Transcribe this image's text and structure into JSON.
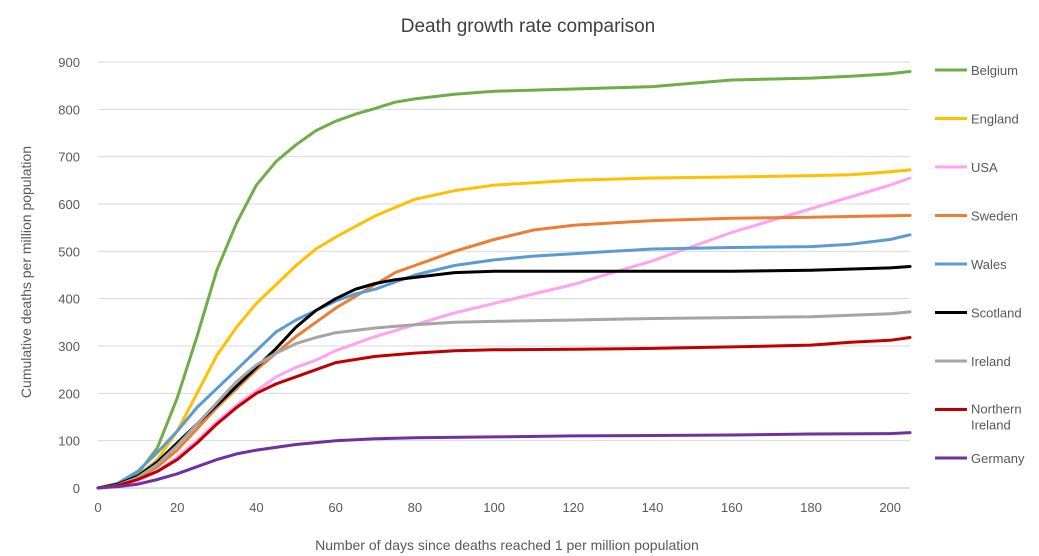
{
  "chart_data": {
    "type": "line",
    "title": "Death growth rate comparison",
    "xlabel": "Number of days since deaths reached 1 per million population",
    "ylabel": "Cumulative deaths per million population",
    "xlim": [
      0,
      205
    ],
    "ylim": [
      0,
      900
    ],
    "xticks": [
      0,
      20,
      40,
      60,
      80,
      100,
      120,
      140,
      160,
      180,
      200
    ],
    "yticks": [
      0,
      100,
      200,
      300,
      400,
      500,
      600,
      700,
      800,
      900
    ],
    "grid": "horizontal",
    "legend": "right",
    "series": [
      {
        "name": "Belgium",
        "color": "#70AD47",
        "x": [
          0,
          5,
          10,
          15,
          20,
          25,
          30,
          35,
          40,
          45,
          50,
          55,
          60,
          65,
          70,
          75,
          80,
          90,
          100,
          120,
          140,
          150,
          160,
          180,
          190,
          200,
          205
        ],
        "y": [
          0,
          8,
          30,
          85,
          190,
          320,
          460,
          560,
          640,
          690,
          725,
          755,
          775,
          790,
          802,
          815,
          822,
          832,
          838,
          843,
          848,
          855,
          862,
          866,
          870,
          875,
          880
        ]
      },
      {
        "name": "England",
        "color": "#FFC000",
        "x": [
          0,
          5,
          10,
          15,
          20,
          25,
          30,
          35,
          40,
          45,
          50,
          55,
          60,
          70,
          80,
          90,
          100,
          110,
          120,
          140,
          160,
          180,
          190,
          200,
          205
        ],
        "y": [
          0,
          6,
          25,
          60,
          120,
          200,
          280,
          340,
          390,
          430,
          470,
          505,
          530,
          575,
          610,
          628,
          640,
          645,
          650,
          655,
          657,
          660,
          662,
          668,
          672
        ]
      },
      {
        "name": "USA",
        "color": "#FFA2F2",
        "x": [
          0,
          5,
          10,
          15,
          20,
          25,
          30,
          35,
          40,
          45,
          50,
          55,
          60,
          70,
          80,
          90,
          100,
          110,
          120,
          130,
          140,
          150,
          160,
          170,
          180,
          190,
          200,
          205
        ],
        "y": [
          0,
          4,
          15,
          35,
          65,
          100,
          140,
          175,
          205,
          235,
          255,
          270,
          290,
          320,
          345,
          370,
          390,
          410,
          430,
          455,
          480,
          510,
          540,
          565,
          590,
          615,
          640,
          655
        ]
      },
      {
        "name": "Sweden",
        "color": "#ED7D31",
        "x": [
          0,
          5,
          10,
          15,
          20,
          25,
          30,
          35,
          40,
          45,
          50,
          55,
          60,
          65,
          70,
          75,
          80,
          90,
          100,
          110,
          120,
          130,
          140,
          160,
          180,
          200,
          205
        ],
        "y": [
          0,
          5,
          20,
          45,
          80,
          125,
          170,
          210,
          250,
          285,
          320,
          350,
          380,
          405,
          430,
          455,
          470,
          500,
          525,
          545,
          555,
          560,
          565,
          570,
          572,
          575,
          576
        ]
      },
      {
        "name": "Wales",
        "color": "#5B9BD5",
        "x": [
          0,
          5,
          10,
          15,
          20,
          25,
          30,
          35,
          40,
          45,
          50,
          55,
          60,
          65,
          70,
          80,
          90,
          100,
          110,
          120,
          130,
          140,
          160,
          180,
          190,
          200,
          205
        ],
        "y": [
          0,
          10,
          35,
          75,
          120,
          170,
          210,
          250,
          290,
          330,
          355,
          375,
          395,
          410,
          420,
          450,
          470,
          482,
          490,
          495,
          500,
          505,
          508,
          510,
          515,
          525,
          535
        ]
      },
      {
        "name": "Scotland",
        "color": "#000000",
        "x": [
          0,
          5,
          10,
          15,
          20,
          25,
          30,
          35,
          40,
          45,
          50,
          55,
          60,
          65,
          70,
          75,
          80,
          90,
          100,
          120,
          140,
          160,
          180,
          200,
          205
        ],
        "y": [
          0,
          8,
          25,
          55,
          95,
          135,
          175,
          215,
          255,
          295,
          340,
          375,
          400,
          420,
          432,
          440,
          445,
          455,
          458,
          458,
          458,
          458,
          460,
          465,
          468
        ]
      },
      {
        "name": "Ireland",
        "color": "#A5A5A5",
        "x": [
          0,
          5,
          10,
          15,
          20,
          25,
          30,
          35,
          40,
          45,
          50,
          55,
          60,
          70,
          80,
          90,
          100,
          120,
          140,
          160,
          180,
          200,
          205
        ],
        "y": [
          0,
          6,
          22,
          50,
          90,
          135,
          180,
          225,
          260,
          285,
          305,
          318,
          328,
          338,
          345,
          350,
          352,
          355,
          358,
          360,
          362,
          368,
          372
        ]
      },
      {
        "name": "Northern Ireland",
        "color": "#C00000",
        "x": [
          0,
          5,
          10,
          15,
          20,
          25,
          30,
          35,
          40,
          45,
          50,
          55,
          60,
          70,
          80,
          90,
          100,
          120,
          140,
          160,
          180,
          190,
          200,
          205
        ],
        "y": [
          0,
          5,
          18,
          35,
          60,
          95,
          135,
          170,
          200,
          220,
          235,
          250,
          265,
          278,
          285,
          290,
          292,
          293,
          295,
          298,
          302,
          308,
          312,
          318
        ]
      },
      {
        "name": "Germany",
        "color": "#7030A0",
        "x": [
          0,
          5,
          10,
          15,
          20,
          25,
          30,
          35,
          40,
          50,
          60,
          70,
          80,
          100,
          120,
          140,
          160,
          180,
          200,
          205
        ],
        "y": [
          0,
          3,
          8,
          18,
          30,
          45,
          60,
          72,
          80,
          92,
          100,
          104,
          106,
          108,
          110,
          111,
          112,
          114,
          115,
          117
        ]
      }
    ]
  }
}
